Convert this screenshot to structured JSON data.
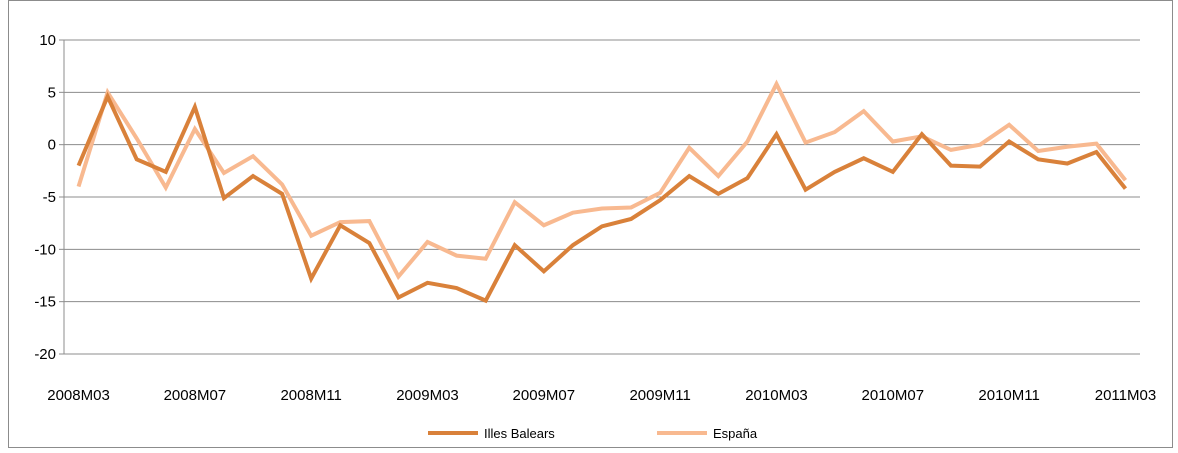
{
  "chart_data": {
    "type": "line",
    "title": "",
    "xlabel": "",
    "ylabel": "",
    "ylim": [
      -20,
      10
    ],
    "yticks": [
      10,
      5,
      0,
      -5,
      -10,
      -15,
      -20
    ],
    "x": [
      "2008M03",
      "2008M04",
      "2008M05",
      "2008M06",
      "2008M07",
      "2008M08",
      "2008M09",
      "2008M10",
      "2008M11",
      "2008M12",
      "2009M01",
      "2009M02",
      "2009M03",
      "2009M04",
      "2009M05",
      "2009M06",
      "2009M07",
      "2009M08",
      "2009M09",
      "2009M10",
      "2009M11",
      "2009M12",
      "2010M01",
      "2010M02",
      "2010M03",
      "2010M04",
      "2010M05",
      "2010M06",
      "2010M07",
      "2010M08",
      "2010M09",
      "2010M10",
      "2010M11",
      "2010M12",
      "2011M01",
      "2011M02",
      "2011M03"
    ],
    "xtick_labels": [
      "2008M03",
      "2008M07",
      "2008M11",
      "2009M03",
      "2009M07",
      "2009M11",
      "2010M03",
      "2010M07",
      "2010M11",
      "2011M03"
    ],
    "grid": true,
    "legend_position": "bottom",
    "series": [
      {
        "name": "Illes Balears",
        "color": "#d9813a",
        "values": [
          -2.0,
          4.6,
          -1.4,
          -2.6,
          3.6,
          -5.1,
          -3.0,
          -4.7,
          -12.8,
          -7.7,
          -9.4,
          -14.6,
          -13.2,
          -13.7,
          -14.9,
          -9.6,
          -12.1,
          -9.6,
          -7.8,
          -7.1,
          -5.3,
          -3.0,
          -4.7,
          -3.2,
          1.0,
          -4.3,
          -2.6,
          -1.3,
          -2.6,
          1.0,
          -2.0,
          -2.1,
          0.3,
          -1.4,
          -1.8,
          -0.7,
          -4.2
        ]
      },
      {
        "name": "España",
        "color": "#f8b990",
        "values": [
          -4.0,
          5.0,
          0.6,
          -4.1,
          1.5,
          -2.7,
          -1.1,
          -3.8,
          -8.7,
          -7.4,
          -7.3,
          -12.6,
          -9.3,
          -10.6,
          -10.9,
          -5.5,
          -7.7,
          -6.5,
          -6.1,
          -6.0,
          -4.6,
          -0.3,
          -3.0,
          0.3,
          5.8,
          0.2,
          1.2,
          3.2,
          0.3,
          0.8,
          -0.5,
          0.0,
          1.9,
          -0.6,
          -0.2,
          0.1,
          -3.4
        ]
      }
    ]
  }
}
